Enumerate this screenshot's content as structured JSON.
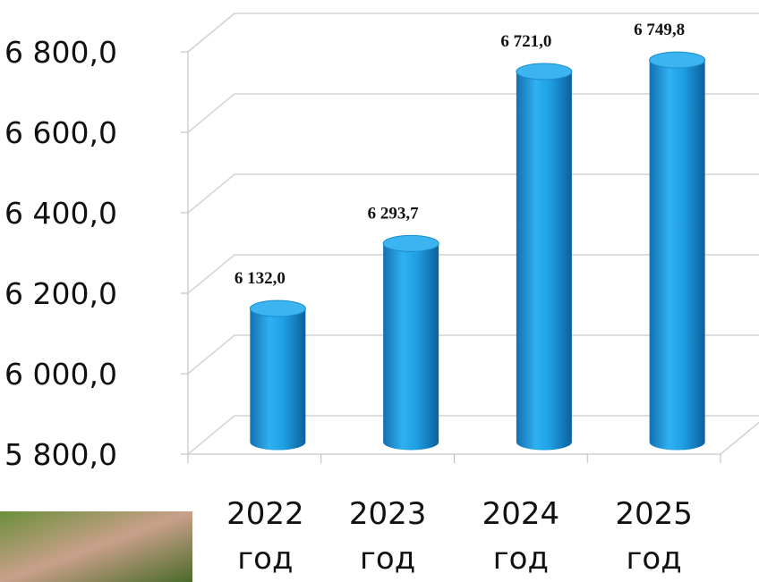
{
  "chart_data": {
    "type": "bar",
    "categories": [
      "2022\nгод",
      "2023\nгод",
      "2024\nгод",
      "2025\nгод"
    ],
    "values": [
      6132.0,
      6293.7,
      6721.0,
      6749.8
    ],
    "value_labels": [
      "6 132,0",
      "6 293,7",
      "6 721,0",
      "6 749,8"
    ],
    "color": "#1fa0e4",
    "ylim": [
      5800,
      6800
    ],
    "yticks": [
      {
        "value": 5800,
        "label": "5 800,0"
      },
      {
        "value": 6000,
        "label": "6 000,0"
      },
      {
        "value": 6200,
        "label": "6 200,0"
      },
      {
        "value": 6400,
        "label": "6 400,0"
      },
      {
        "value": 6600,
        "label": "6 600,0"
      },
      {
        "value": 6800,
        "label": "6 800,0"
      }
    ],
    "grid": true
  }
}
